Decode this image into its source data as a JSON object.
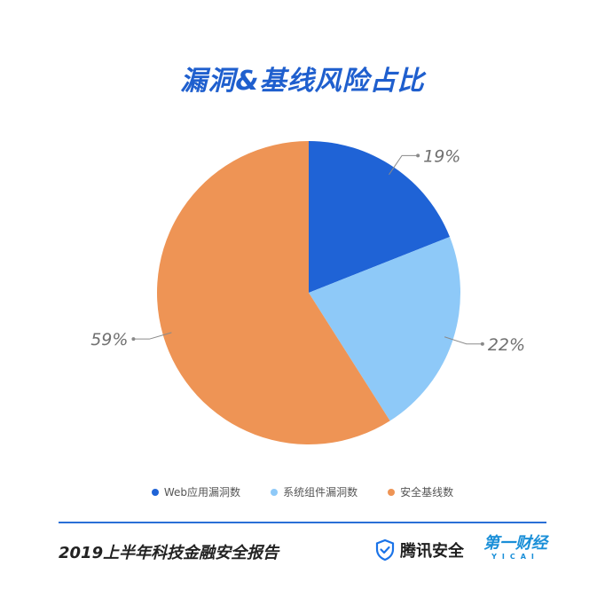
{
  "chart_data": {
    "type": "pie",
    "title": "漏洞&基线风险占比",
    "categories": [
      "Web应用漏洞数",
      "系统组件漏洞数",
      "安全基线数"
    ],
    "values": [
      19,
      22,
      59
    ],
    "labels": [
      "19%",
      "22%",
      "59%"
    ],
    "colors": [
      "#1f63d6",
      "#8ec9f8",
      "#ee9455"
    ],
    "legend_position": "bottom"
  },
  "footer": {
    "report_title": "2019上半年科技金融安全报告",
    "tencent_logo_text": "腾讯安全",
    "yicai_logo_text": "第一财经",
    "yicai_logo_sub": "YICAI",
    "tencent_icon": "shield-icon",
    "divider_color": "#2a6fd6"
  }
}
